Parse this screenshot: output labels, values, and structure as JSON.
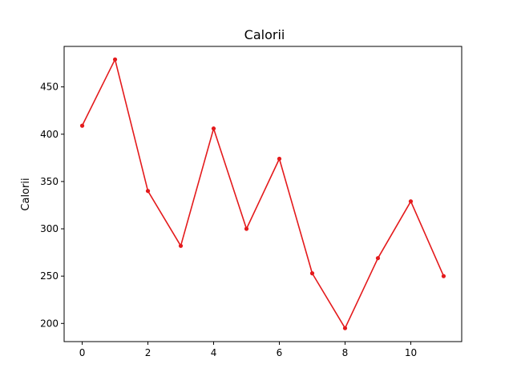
{
  "chart_data": {
    "type": "line",
    "title": "Calorii",
    "xlabel": "",
    "ylabel": "Calorii",
    "xlim": [
      -0.55,
      11.55
    ],
    "ylim": [
      180.8,
      492.8
    ],
    "xticks": [
      0,
      2,
      4,
      6,
      8,
      10
    ],
    "yticks": [
      200,
      250,
      300,
      350,
      400,
      450
    ],
    "grid": false,
    "legend": "none",
    "series": [
      {
        "color": "#e41a1c",
        "marker": "circle",
        "x": [
          0,
          1,
          2,
          3,
          4,
          5,
          6,
          7,
          8,
          9,
          10,
          11
        ],
        "y": [
          409,
          479,
          340,
          282,
          406,
          300,
          374,
          253,
          195,
          269,
          329,
          250
        ]
      }
    ]
  }
}
